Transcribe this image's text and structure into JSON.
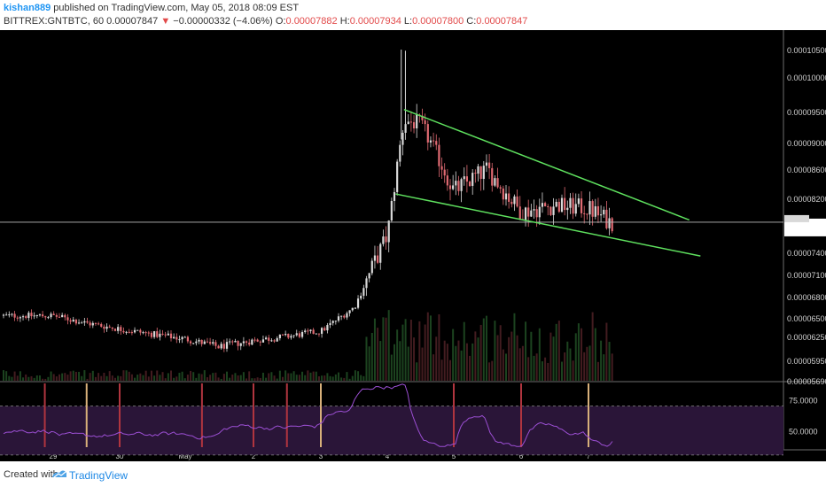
{
  "header": {
    "author": "kishan889",
    "published_text": "published on TradingView.com, May 05, 2018 08:09 EST",
    "symbol": "BITTREX:GNTBTC, 60",
    "last_price": "0.00007847",
    "change_text": "−0.00000332 (−4.06%)",
    "ohlc": [
      {
        "key": "O:",
        "value": "0.00007882"
      },
      {
        "key": "H:",
        "value": "0.00007934"
      },
      {
        "key": "L:",
        "value": "0.00007800"
      },
      {
        "key": "C:",
        "value": "0.00007847"
      }
    ]
  },
  "footer": {
    "created_with": "Created with",
    "brand": "TradingView"
  },
  "colors": {
    "background": "#000000",
    "up": "#d9d9d9",
    "down": "#e06a72",
    "trendline": "#5ee05e",
    "rsi_line": "#9c4fd4",
    "rsi_band": "#2a1538",
    "signal_red": "#b0353f",
    "signal_tan": "#d8b07a"
  },
  "chart_data": [
    {
      "type": "candlestick",
      "symbol": "BITTREX:GNTBTC",
      "interval": "60",
      "x_tick_labels": [
        "29",
        "30",
        "May",
        "2",
        "3",
        "4",
        "5",
        "6",
        "7"
      ],
      "y_tick_labels": [
        "0.00010500",
        "0.00010000",
        "0.00009500",
        "0.00009000",
        "0.00008600",
        "0.00008200",
        "0.00007400",
        "0.00007100",
        "0.00006800",
        "0.00006500",
        "0.00006250",
        "0.00005950",
        "0.00005690"
      ],
      "ylim": [
        5.69e-05,
        0.0001075
      ],
      "last_price": 7.847e-05,
      "approx_close_path": [
        {
          "time": "29 00:00",
          "close": 6.53e-05
        },
        {
          "time": "29 12:00",
          "close": 6.43e-05
        },
        {
          "time": "30 00:00",
          "close": 6.35e-05
        },
        {
          "time": "30 12:00",
          "close": 6.28e-05
        },
        {
          "time": "May 00:00",
          "close": 6.22e-05
        },
        {
          "time": "May 12:00",
          "close": 6.12e-05
        },
        {
          "time": "2 00:00",
          "close": 6.2e-05
        },
        {
          "time": "2 12:00",
          "close": 6.25e-05
        },
        {
          "time": "3 00:00",
          "close": 6.32e-05
        },
        {
          "time": "3 12:00",
          "close": 6.65e-05
        },
        {
          "time": "4 00:00",
          "close": 7.65e-05
        },
        {
          "time": "4 06:00",
          "close": 9.35e-05
        },
        {
          "time": "4 12:00",
          "close": 9.3e-05
        },
        {
          "time": "5 00:00",
          "close": 8.3e-05
        },
        {
          "time": "5 12:00",
          "close": 8.6e-05
        },
        {
          "time": "6 00:00",
          "close": 8e-05
        },
        {
          "time": "6 12:00",
          "close": 8.1e-05
        },
        {
          "time": "7 00:00",
          "close": 8.05e-05
        },
        {
          "time": "7 08:00",
          "close": 7.847e-05
        }
      ],
      "trendlines": [
        {
          "name": "upper",
          "start": {
            "time": "4 06:00",
            "price": 9.53e-05
          },
          "end": {
            "time": "8 12:00",
            "price": 7.88e-05
          }
        },
        {
          "name": "lower",
          "start": {
            "time": "4 03:00",
            "price": 8.26e-05
          },
          "end": {
            "time": "8 16:00",
            "price": 7.35e-05
          }
        }
      ]
    },
    {
      "type": "line",
      "name": "RSI",
      "y_tick_labels": [
        "75.0000",
        "50.0000"
      ],
      "ylim": [
        35,
        90
      ],
      "bands": [
        70,
        30
      ],
      "signal_markers": [
        {
          "time": "28 21:00",
          "color": "red"
        },
        {
          "time": "29 12:00",
          "color": "tan"
        },
        {
          "time": "30 00:00",
          "color": "red"
        },
        {
          "time": "May 06:00",
          "color": "red"
        },
        {
          "time": "2 00:00",
          "color": "red"
        },
        {
          "time": "2 12:00",
          "color": "red"
        },
        {
          "time": "3 00:00",
          "color": "tan"
        },
        {
          "time": "5 00:00",
          "color": "red"
        },
        {
          "time": "6 00:00",
          "color": "red"
        },
        {
          "time": "7 00:00",
          "color": "tan"
        }
      ]
    }
  ]
}
